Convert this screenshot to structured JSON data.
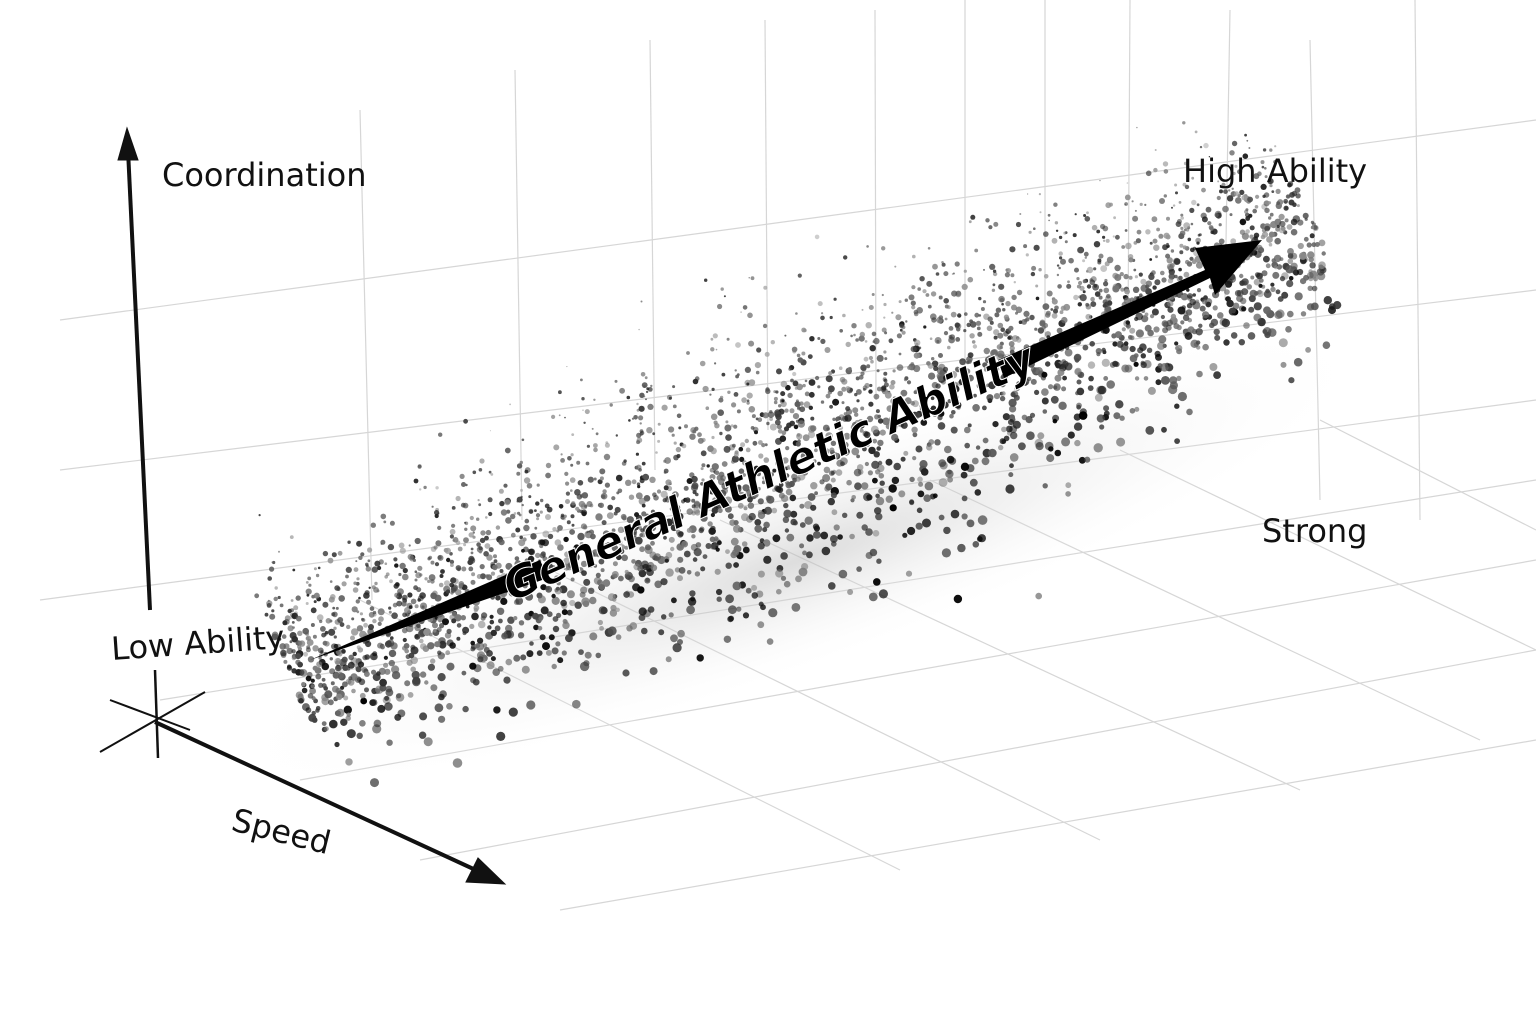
{
  "axes": {
    "vertical": "Coordination",
    "depth": "Speed",
    "right": "Strong"
  },
  "annotations": {
    "low": "Low Ability",
    "high": "High Ability"
  },
  "trend_label": "General Athletic Ability"
}
